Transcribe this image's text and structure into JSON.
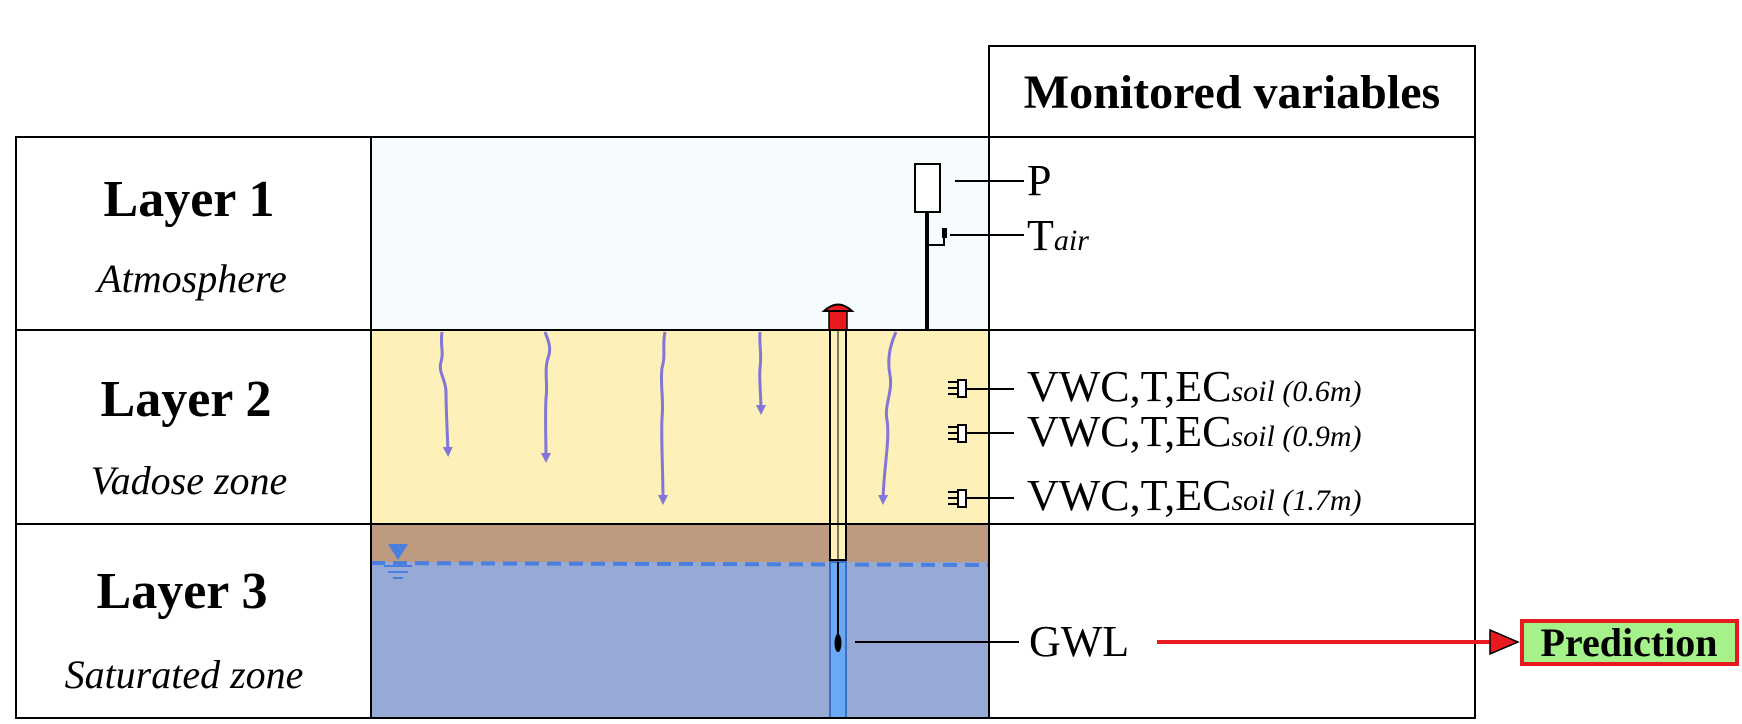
{
  "header": {
    "title": "Monitored variables"
  },
  "layers": [
    {
      "title": "Layer 1",
      "subtitle": "Atmosphere"
    },
    {
      "title": "Layer 2",
      "subtitle": "Vadose zone"
    },
    {
      "title": "Layer 3",
      "subtitle": "Saturated zone"
    }
  ],
  "variables": {
    "precipitation": "P",
    "air_temp": {
      "main": "T",
      "sub": "air"
    },
    "soil": [
      {
        "main": "VWC,T,EC",
        "sub": "soil (0.6m)"
      },
      {
        "main": "VWC,T,EC",
        "sub": "soil (0.9m)"
      },
      {
        "main": "VWC,T,EC",
        "sub": "soil (1.7m)"
      }
    ],
    "groundwater": "GWL"
  },
  "prediction": {
    "label": "Prediction"
  },
  "colors": {
    "atmosphere": "#f6fbfd",
    "vadose": "#fdf0b8",
    "capillary": "#bd9a80",
    "saturated": "#97a9d5",
    "infiltration": "#8376d8",
    "water_table": "#4a7fe0",
    "well_water": "#6aa9f4",
    "well_cap": "#e8191f",
    "arrow": "#e8191f",
    "prediction_bg": "#a5f28a"
  }
}
